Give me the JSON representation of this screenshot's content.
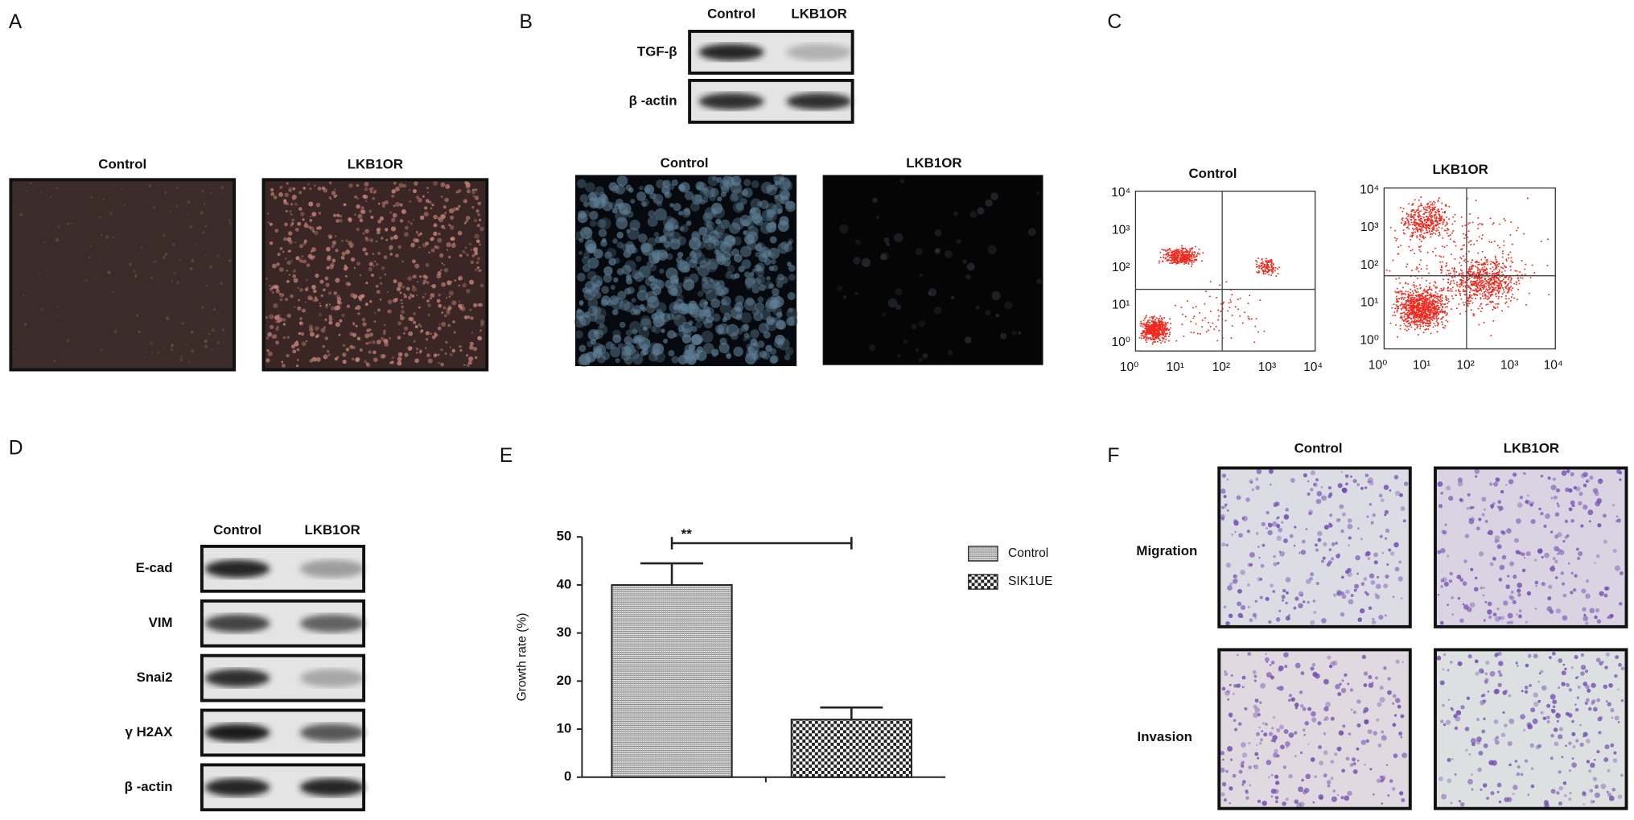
{
  "panels": {
    "a": {
      "label": "A",
      "images": [
        {
          "title": "Control"
        },
        {
          "title": "LKB1OR"
        }
      ]
    },
    "b": {
      "label": "B",
      "blot": {
        "columns": [
          "Control",
          "LKB1OR"
        ],
        "rows": [
          "TGF-β",
          "β -actin"
        ]
      },
      "images": [
        {
          "title": "Control"
        },
        {
          "title": "LKB1OR"
        }
      ]
    },
    "c": {
      "label": "C",
      "plots": [
        {
          "title": "Control",
          "xticks": [
            "10⁰",
            "10¹",
            "10²",
            "10³",
            "10⁴"
          ],
          "yticks": [
            "10⁰",
            "10¹",
            "10²",
            "10³",
            "10⁴"
          ]
        },
        {
          "title": "LKB1OR",
          "xticks": [
            "10⁰",
            "10¹",
            "10²",
            "10³",
            "10⁴"
          ],
          "yticks": [
            "10⁰",
            "10¹",
            "10²",
            "10³",
            "10⁴"
          ]
        }
      ]
    },
    "d": {
      "label": "D",
      "blot": {
        "columns": [
          "Control",
          "LKB1OR"
        ],
        "rows": [
          "E-cad",
          "VIM",
          "Snai2",
          "γ H2AX",
          "β -actin"
        ]
      }
    },
    "e": {
      "label": "E"
    },
    "f": {
      "label": "F",
      "columns": [
        "Control",
        "LKB1OR"
      ],
      "rows": [
        "Migration",
        "Invasion"
      ]
    }
  },
  "chart_data": {
    "type": "bar",
    "ylabel": "Growth rate (%)",
    "annotation": "**",
    "categories": [
      null
    ],
    "series": [
      {
        "name": "Control",
        "color": "#9a9a9a",
        "values": [
          40
        ],
        "errors": [
          4.5
        ]
      },
      {
        "name": "SIK1UE",
        "color": "#222222",
        "values": [
          12
        ],
        "errors": [
          2.5
        ]
      }
    ],
    "ylim": [
      0,
      50
    ],
    "yticks": [
      0,
      10,
      20,
      30,
      40,
      50
    ],
    "legend": "right"
  }
}
